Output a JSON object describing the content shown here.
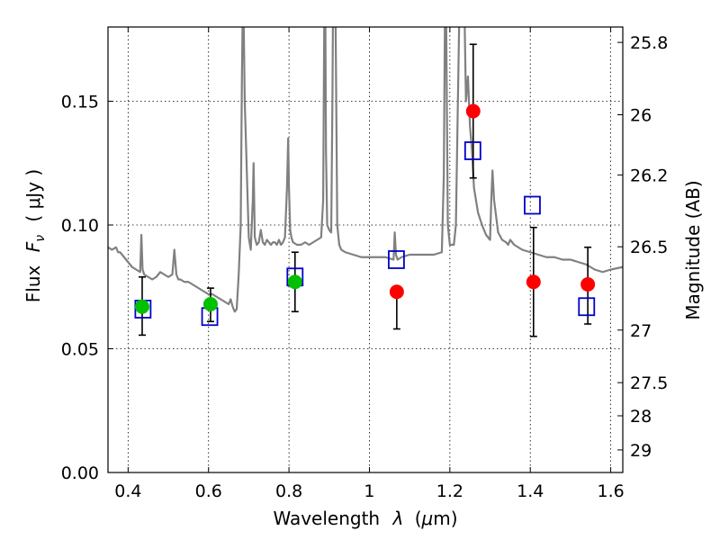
{
  "chart_data": {
    "type": "scatter",
    "xlabel_main": "Wavelength",
    "xlabel_var": "λ",
    "xlabel_unit_prefix": "(",
    "xlabel_unit_mu": "μ",
    "xlabel_unit_rest": "m)",
    "ylabel_main": "Flux",
    "ylabel_var": "F",
    "ylabel_sub": "ν",
    "ylabel_unit": "( μJy )",
    "ylabel_right": "Magnitude (AB)",
    "xlim": [
      0.35,
      1.63
    ],
    "ylim": [
      0.0,
      0.18
    ],
    "grid": true,
    "x_ticks": [
      0.4,
      0.6,
      0.8,
      1.0,
      1.2,
      1.4,
      1.6
    ],
    "x_tick_labels": [
      "0.4",
      "0.6",
      "0.8",
      "1",
      "1.2",
      "1.4",
      "1.6"
    ],
    "y_ticks": [
      0.0,
      0.05,
      0.1,
      0.15
    ],
    "y_tick_labels": [
      "0.00",
      "0.05",
      "0.10",
      "0.15"
    ],
    "mag_ticks": [
      25.8,
      26,
      26.2,
      26.5,
      27,
      27.5,
      28,
      29
    ],
    "mag_tick_labels": [
      "25.8",
      "26",
      "26.2",
      "26.5",
      "27",
      "27.5",
      "28",
      "29"
    ],
    "colors": {
      "model": "#808080",
      "green": "#00c000",
      "red": "#ff0000",
      "blue": "#0000cc",
      "errorbar": "#000000"
    },
    "series": [
      {
        "name": "model_spectrum",
        "style": "line",
        "x": [
          0.35,
          0.36,
          0.37,
          0.375,
          0.38,
          0.385,
          0.39,
          0.4,
          0.41,
          0.42,
          0.43,
          0.433,
          0.436,
          0.44,
          0.45,
          0.46,
          0.47,
          0.48,
          0.49,
          0.5,
          0.51,
          0.515,
          0.52,
          0.525,
          0.53,
          0.54,
          0.55,
          0.56,
          0.57,
          0.58,
          0.59,
          0.6,
          0.61,
          0.62,
          0.63,
          0.64,
          0.65,
          0.655,
          0.66,
          0.665,
          0.67,
          0.675,
          0.68,
          0.683,
          0.686,
          0.69,
          0.7,
          0.705,
          0.71,
          0.712,
          0.715,
          0.72,
          0.725,
          0.73,
          0.735,
          0.74,
          0.745,
          0.75,
          0.755,
          0.76,
          0.765,
          0.77,
          0.775,
          0.78,
          0.785,
          0.79,
          0.795,
          0.798,
          0.8,
          0.803,
          0.806,
          0.81,
          0.82,
          0.83,
          0.84,
          0.85,
          0.86,
          0.87,
          0.88,
          0.885,
          0.888,
          0.89,
          0.892,
          0.895,
          0.9,
          0.905,
          0.908,
          0.91,
          0.912,
          0.915,
          0.918,
          0.92,
          0.925,
          0.93,
          0.94,
          0.96,
          0.98,
          1.0,
          1.02,
          1.04,
          1.06,
          1.063,
          1.066,
          1.07,
          1.08,
          1.1,
          1.12,
          1.14,
          1.16,
          1.18,
          1.185,
          1.188,
          1.19,
          1.195,
          1.2,
          1.21,
          1.215,
          1.22,
          1.225,
          1.23,
          1.235,
          1.24,
          1.245,
          1.25,
          1.255,
          1.26,
          1.27,
          1.28,
          1.29,
          1.3,
          1.303,
          1.306,
          1.31,
          1.32,
          1.33,
          1.34,
          1.345,
          1.35,
          1.36,
          1.38,
          1.4,
          1.42,
          1.44,
          1.46,
          1.48,
          1.5,
          1.52,
          1.54,
          1.56,
          1.58,
          1.6,
          1.63
        ],
        "y": [
          0.091,
          0.09,
          0.091,
          0.089,
          0.089,
          0.088,
          0.087,
          0.085,
          0.083,
          0.082,
          0.081,
          0.096,
          0.082,
          0.08,
          0.079,
          0.078,
          0.079,
          0.081,
          0.08,
          0.079,
          0.08,
          0.09,
          0.08,
          0.078,
          0.078,
          0.077,
          0.077,
          0.076,
          0.075,
          0.074,
          0.073,
          0.072,
          0.072,
          0.071,
          0.07,
          0.069,
          0.068,
          0.07,
          0.067,
          0.065,
          0.066,
          0.08,
          0.1,
          0.16,
          0.2,
          0.15,
          0.095,
          0.09,
          0.11,
          0.125,
          0.095,
          0.092,
          0.093,
          0.098,
          0.093,
          0.092,
          0.094,
          0.093,
          0.092,
          0.093,
          0.093,
          0.092,
          0.094,
          0.092,
          0.093,
          0.095,
          0.115,
          0.135,
          0.115,
          0.098,
          0.095,
          0.093,
          0.092,
          0.092,
          0.093,
          0.092,
          0.093,
          0.094,
          0.095,
          0.11,
          0.19,
          0.2,
          0.13,
          0.1,
          0.098,
          0.097,
          0.15,
          0.2,
          0.2,
          0.2,
          0.14,
          0.1,
          0.092,
          0.09,
          0.089,
          0.088,
          0.087,
          0.087,
          0.087,
          0.087,
          0.086,
          0.097,
          0.088,
          0.086,
          0.087,
          0.088,
          0.088,
          0.088,
          0.088,
          0.089,
          0.12,
          0.19,
          0.2,
          0.1,
          0.092,
          0.092,
          0.1,
          0.15,
          0.2,
          0.2,
          0.2,
          0.15,
          0.16,
          0.14,
          0.13,
          0.115,
          0.105,
          0.1,
          0.096,
          0.094,
          0.11,
          0.122,
          0.11,
          0.097,
          0.094,
          0.093,
          0.092,
          0.094,
          0.092,
          0.09,
          0.089,
          0.088,
          0.087,
          0.087,
          0.086,
          0.086,
          0.085,
          0.084,
          0.082,
          0.081,
          0.082,
          0.083
        ]
      },
      {
        "name": "green_points",
        "style": "marker-circle-filled",
        "x": [
          0.435,
          0.605,
          0.815
        ],
        "y": [
          0.067,
          0.068,
          0.077
        ],
        "yerr_low": [
          0.0555,
          0.061,
          0.065
        ],
        "yerr_high": [
          0.079,
          0.0745,
          0.089
        ]
      },
      {
        "name": "red_points",
        "style": "marker-circle-filled",
        "x": [
          1.068,
          1.258,
          1.408,
          1.543
        ],
        "y": [
          0.073,
          0.146,
          0.077,
          0.076
        ],
        "yerr_low": [
          0.058,
          0.119,
          0.055,
          0.06
        ],
        "yerr_high": [
          null,
          0.173,
          0.099,
          0.091
        ]
      },
      {
        "name": "blue_squares",
        "style": "marker-square-open",
        "x": [
          0.437,
          0.603,
          0.815,
          1.067,
          1.257,
          1.405,
          1.54
        ],
        "y": [
          0.066,
          0.063,
          0.079,
          0.086,
          0.13,
          0.108,
          0.067
        ]
      }
    ]
  }
}
